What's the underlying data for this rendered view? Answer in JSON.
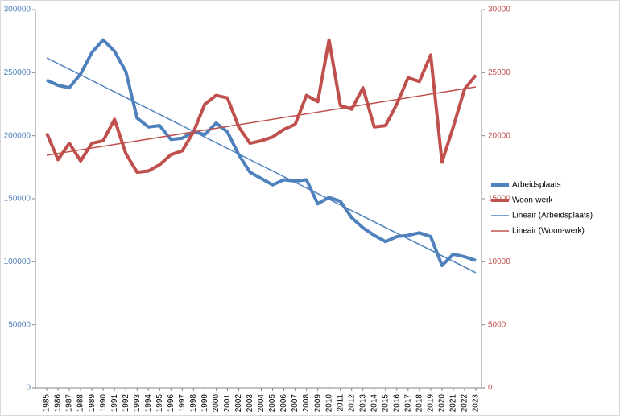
{
  "chart_data": {
    "type": "line",
    "x": [
      1985,
      1986,
      1987,
      1988,
      1989,
      1990,
      1991,
      1992,
      1993,
      1994,
      1995,
      1996,
      1997,
      1998,
      1999,
      2000,
      2001,
      2002,
      2003,
      2004,
      2005,
      2006,
      2007,
      2008,
      2009,
      2010,
      2011,
      2012,
      2013,
      2014,
      2015,
      2016,
      2017,
      2018,
      2019,
      2020,
      2021,
      2022,
      2023
    ],
    "xlim": [
      1984,
      2023.5
    ],
    "ylim": [
      0,
      300000
    ],
    "yticks": [
      0,
      50000,
      100000,
      150000,
      200000,
      250000,
      300000
    ],
    "y2lim": [
      0,
      30000
    ],
    "y2ticks": [
      0,
      5000,
      10000,
      15000,
      20000,
      25000,
      30000
    ],
    "y_color": "#4f81bd",
    "y2_color": "#c0504d",
    "series": [
      {
        "name": "Arbeidsplaats",
        "color": "#4f81bd",
        "width": 4,
        "values": [
          244000,
          240000,
          238000,
          249000,
          266000,
          276000,
          267000,
          251000,
          214000,
          207000,
          208000,
          197000,
          198000,
          203000,
          201000,
          210000,
          203000,
          185000,
          171000,
          166000,
          161000,
          165000,
          164000,
          165000,
          146000,
          151000,
          148000,
          135000,
          127000,
          121000,
          116000,
          120000,
          121000,
          123000,
          120000,
          97000,
          106000,
          104000,
          101000
        ]
      },
      {
        "name": "Woon-werk",
        "color": "#c0504d",
        "width": 4,
        "axis": "y2",
        "values": [
          20200,
          18100,
          19400,
          18000,
          19400,
          19600,
          21300,
          18600,
          17100,
          17200,
          17700,
          18500,
          18800,
          20300,
          22500,
          23200,
          23000,
          20700,
          19400,
          19600,
          19900,
          20500,
          20900,
          23200,
          22700,
          27600,
          22400,
          22100,
          23800,
          20700,
          20800,
          22500,
          24600,
          24300,
          26400,
          17900,
          20700,
          23700,
          24800
        ]
      },
      {
        "name": "Lineair (Arbeidsplaats)",
        "color": "#4f81bd",
        "width": 1.5,
        "x": [
          1985,
          2023
        ],
        "values": [
          261700,
          91300
        ]
      },
      {
        "name": "Lineair (Woon-werk)",
        "color": "#c0504d",
        "width": 1.5,
        "axis": "y2",
        "x": [
          1985,
          2023
        ],
        "values": [
          18450,
          23870
        ]
      }
    ]
  }
}
